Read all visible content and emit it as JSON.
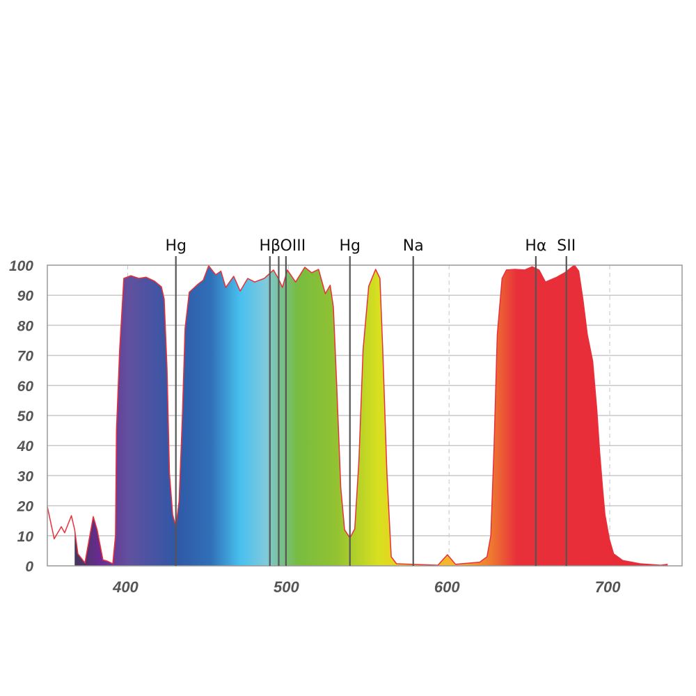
{
  "chart_data": {
    "type": "area",
    "title": "",
    "xlabel": "",
    "ylabel": "",
    "xlim": [
      350,
      745
    ],
    "ylim": [
      0,
      100
    ],
    "grid": "horizontal solid every 10; dashed vertical at x ticks",
    "x_ticks": [
      400,
      500,
      600,
      700
    ],
    "x_tick_labels": [
      "400",
      "500",
      "600",
      "700"
    ],
    "y_ticks": [
      0,
      10,
      20,
      30,
      40,
      50,
      60,
      70,
      80,
      90,
      100
    ],
    "y_tick_labels": [
      "0",
      "10",
      "20",
      "30",
      "40",
      "50",
      "60",
      "70",
      "80",
      "90",
      "100"
    ],
    "fill_start": 367,
    "line_color": "#e8303a",
    "fill_gradient": [
      {
        "x": 367,
        "color": "#44385a"
      },
      {
        "x": 383,
        "color": "#6a2a92"
      },
      {
        "x": 400,
        "color": "#62509e"
      },
      {
        "x": 430,
        "color": "#3058a6"
      },
      {
        "x": 452,
        "color": "#3070b8"
      },
      {
        "x": 470,
        "color": "#48c0ee"
      },
      {
        "x": 486,
        "color": "#80cadc"
      },
      {
        "x": 496,
        "color": "#78c08a"
      },
      {
        "x": 506,
        "color": "#78bc40"
      },
      {
        "x": 530,
        "color": "#92c232"
      },
      {
        "x": 556,
        "color": "#d8e020"
      },
      {
        "x": 575,
        "color": "#f2c822"
      },
      {
        "x": 605,
        "color": "#f8b030"
      },
      {
        "x": 626,
        "color": "#ee7a30"
      },
      {
        "x": 642,
        "color": "#e8303a"
      },
      {
        "x": 745,
        "color": "#e82a35"
      }
    ],
    "series": [
      {
        "x": [
          350,
          354.3,
          358.7,
          360.8,
          365,
          367,
          369,
          373.4,
          378.6,
          381,
          384.6,
          387.7,
          390.7,
          392.4,
          393,
          395,
          397.6,
          402,
          407,
          411.5,
          416.7,
          421,
          422.7,
          424.5,
          426,
          428,
          430,
          432,
          434,
          435.7,
          438.3,
          444,
          447,
          450.4,
          454.8,
          458,
          461,
          466,
          470,
          474.7,
          479,
          485,
          490.7,
          493.7,
          496.3,
          499.4,
          504.5,
          510.2,
          514.5,
          518.8,
          523,
          526,
          528,
          530,
          532.6,
          535,
          538.3,
          541.3,
          543.9,
          546.5,
          550,
          554.3,
          557,
          558.7,
          561.3,
          564,
          567.3,
          593,
          599,
          604,
          619,
          623.6,
          626,
          628,
          630,
          633,
          635.7,
          641,
          647,
          651.7,
          656,
          660,
          667,
          672,
          678,
          680.7,
          683.3,
          686,
          689.4,
          692,
          693.7,
          695.5,
          697,
          699.8,
          702.4,
          708,
          718.8,
          731.8,
          736
        ],
        "y": [
          19.7,
          9,
          13,
          11,
          16.7,
          12,
          4,
          1,
          16.4,
          12,
          2,
          1.5,
          0.7,
          10,
          45,
          72,
          95.6,
          96.5,
          95.6,
          96,
          94.7,
          92.8,
          88.7,
          65.5,
          30.8,
          17,
          13,
          21.5,
          49,
          79,
          91,
          93.8,
          95,
          99.8,
          96.8,
          98,
          92.6,
          96.3,
          91.4,
          95.6,
          94.4,
          95.6,
          98.4,
          95.6,
          92.6,
          98.4,
          94.4,
          99.3,
          97.5,
          98.6,
          90.5,
          93.3,
          86,
          61,
          26,
          12,
          9.3,
          12.3,
          35,
          72,
          93,
          98.6,
          95.6,
          72,
          31,
          3,
          0.7,
          0.2,
          3.7,
          0.5,
          1.2,
          3,
          10,
          40,
          77,
          95.6,
          98.4,
          98.6,
          98.4,
          99.5,
          98.4,
          94.4,
          96,
          97.5,
          100,
          98,
          88.7,
          77,
          68,
          51.6,
          37.7,
          26,
          17,
          8.8,
          4,
          1.8,
          0.7,
          0.2,
          0.5
        ]
      }
    ],
    "annotations": [
      {
        "label": "Hg",
        "x": 430
      },
      {
        "label": "Hβ",
        "x": 488.5
      },
      {
        "label": "",
        "x": 494
      },
      {
        "label": "OIII",
        "x": 498.5
      },
      {
        "label": "Hg",
        "x": 538.3
      },
      {
        "label": "Na",
        "x": 577.7
      },
      {
        "label": "Hα",
        "x": 654
      },
      {
        "label": "SII",
        "x": 673
      }
    ]
  }
}
